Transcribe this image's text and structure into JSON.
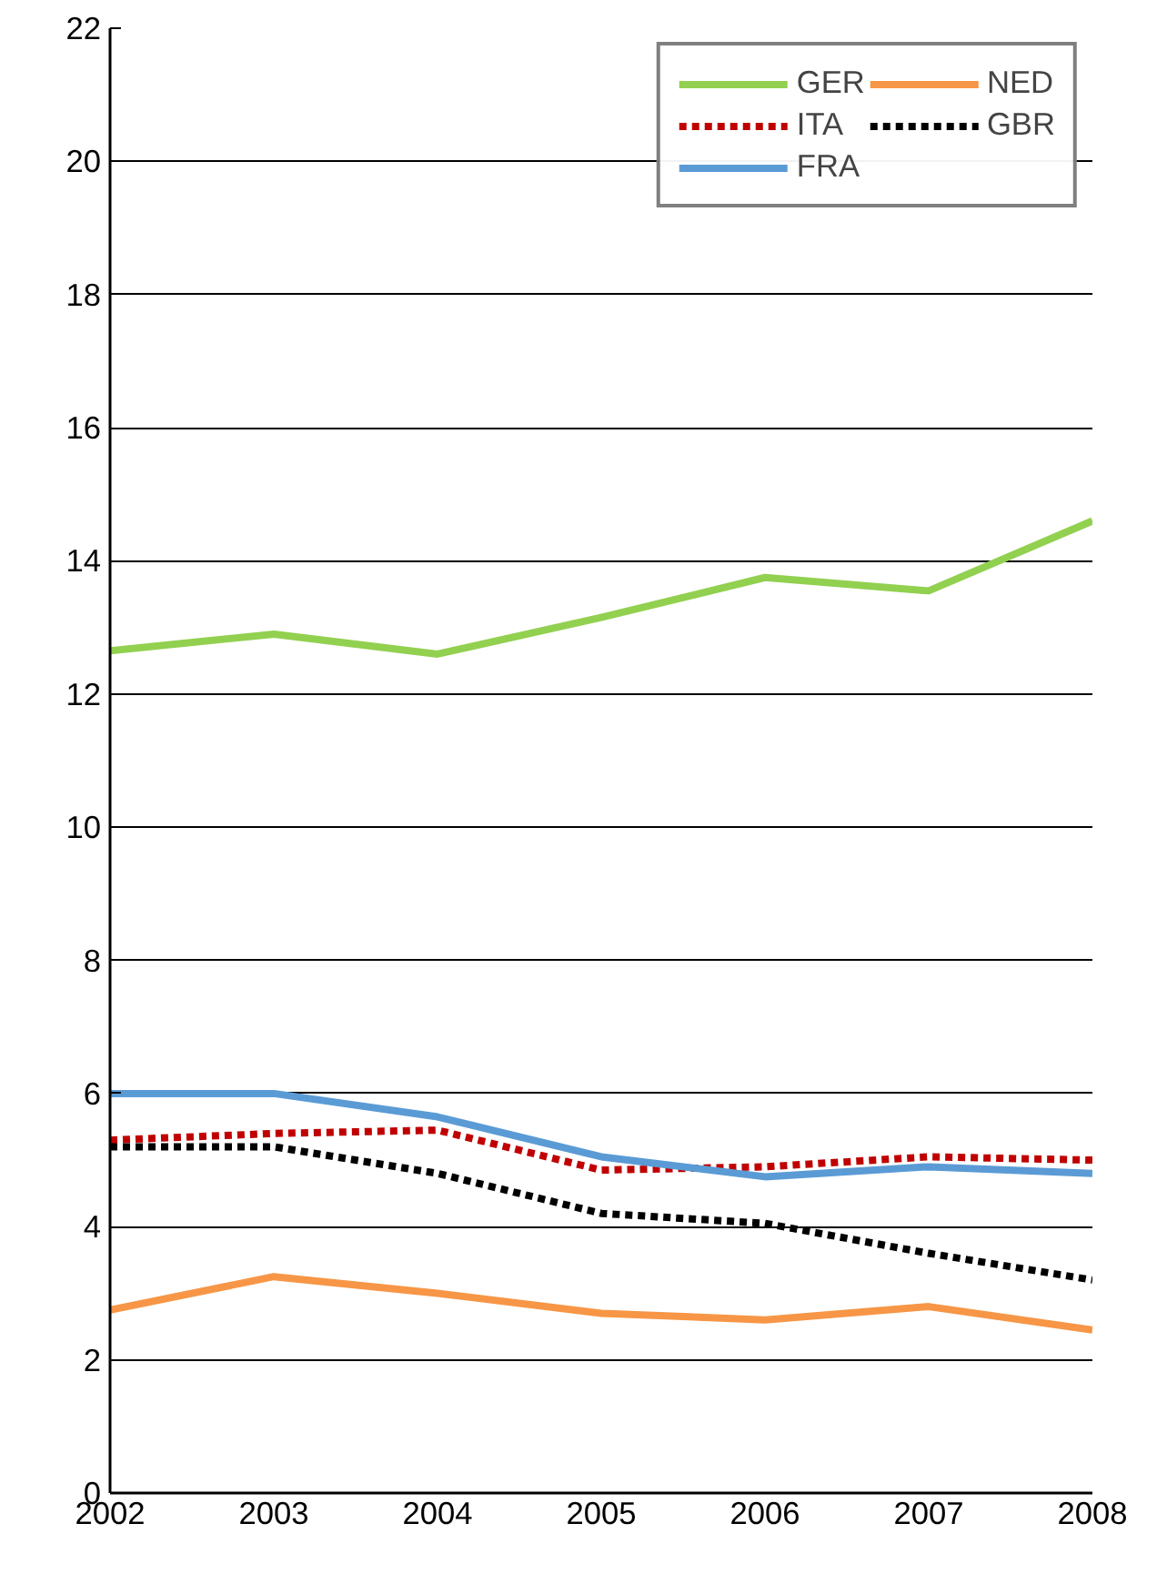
{
  "chart_data": {
    "type": "line",
    "x": [
      2002,
      2003,
      2004,
      2005,
      2006,
      2007,
      2008
    ],
    "xlim": [
      2002,
      2008
    ],
    "xticks": [
      2002,
      2003,
      2004,
      2005,
      2006,
      2007,
      2008
    ],
    "ylim": [
      0,
      22
    ],
    "yticks": [
      0,
      2,
      4,
      6,
      8,
      10,
      12,
      14,
      16,
      18,
      20,
      22
    ],
    "grid": "y",
    "legend": "top right",
    "series": [
      {
        "name": "GER",
        "color": "#92d050",
        "line_style": "solid",
        "values": [
          12.65,
          12.9,
          12.6,
          13.15,
          13.75,
          13.55,
          14.6
        ]
      },
      {
        "name": "ITA",
        "color": "#c00000",
        "line_style": "dashed",
        "values": [
          5.3,
          5.4,
          5.45,
          4.85,
          4.9,
          5.05,
          5.0
        ]
      },
      {
        "name": "FRA",
        "color": "#5b9bd5",
        "line_style": "solid",
        "values": [
          6.0,
          6.0,
          5.65,
          5.05,
          4.75,
          4.9,
          4.8
        ]
      },
      {
        "name": "NED",
        "color": "#f79646",
        "line_style": "solid",
        "values": [
          2.75,
          3.25,
          3.0,
          2.7,
          2.6,
          2.8,
          2.45
        ]
      },
      {
        "name": "GBR",
        "color": "#000000",
        "line_style": "dashed",
        "values": [
          5.2,
          5.2,
          4.8,
          4.2,
          4.05,
          3.6,
          3.2
        ]
      }
    ]
  }
}
